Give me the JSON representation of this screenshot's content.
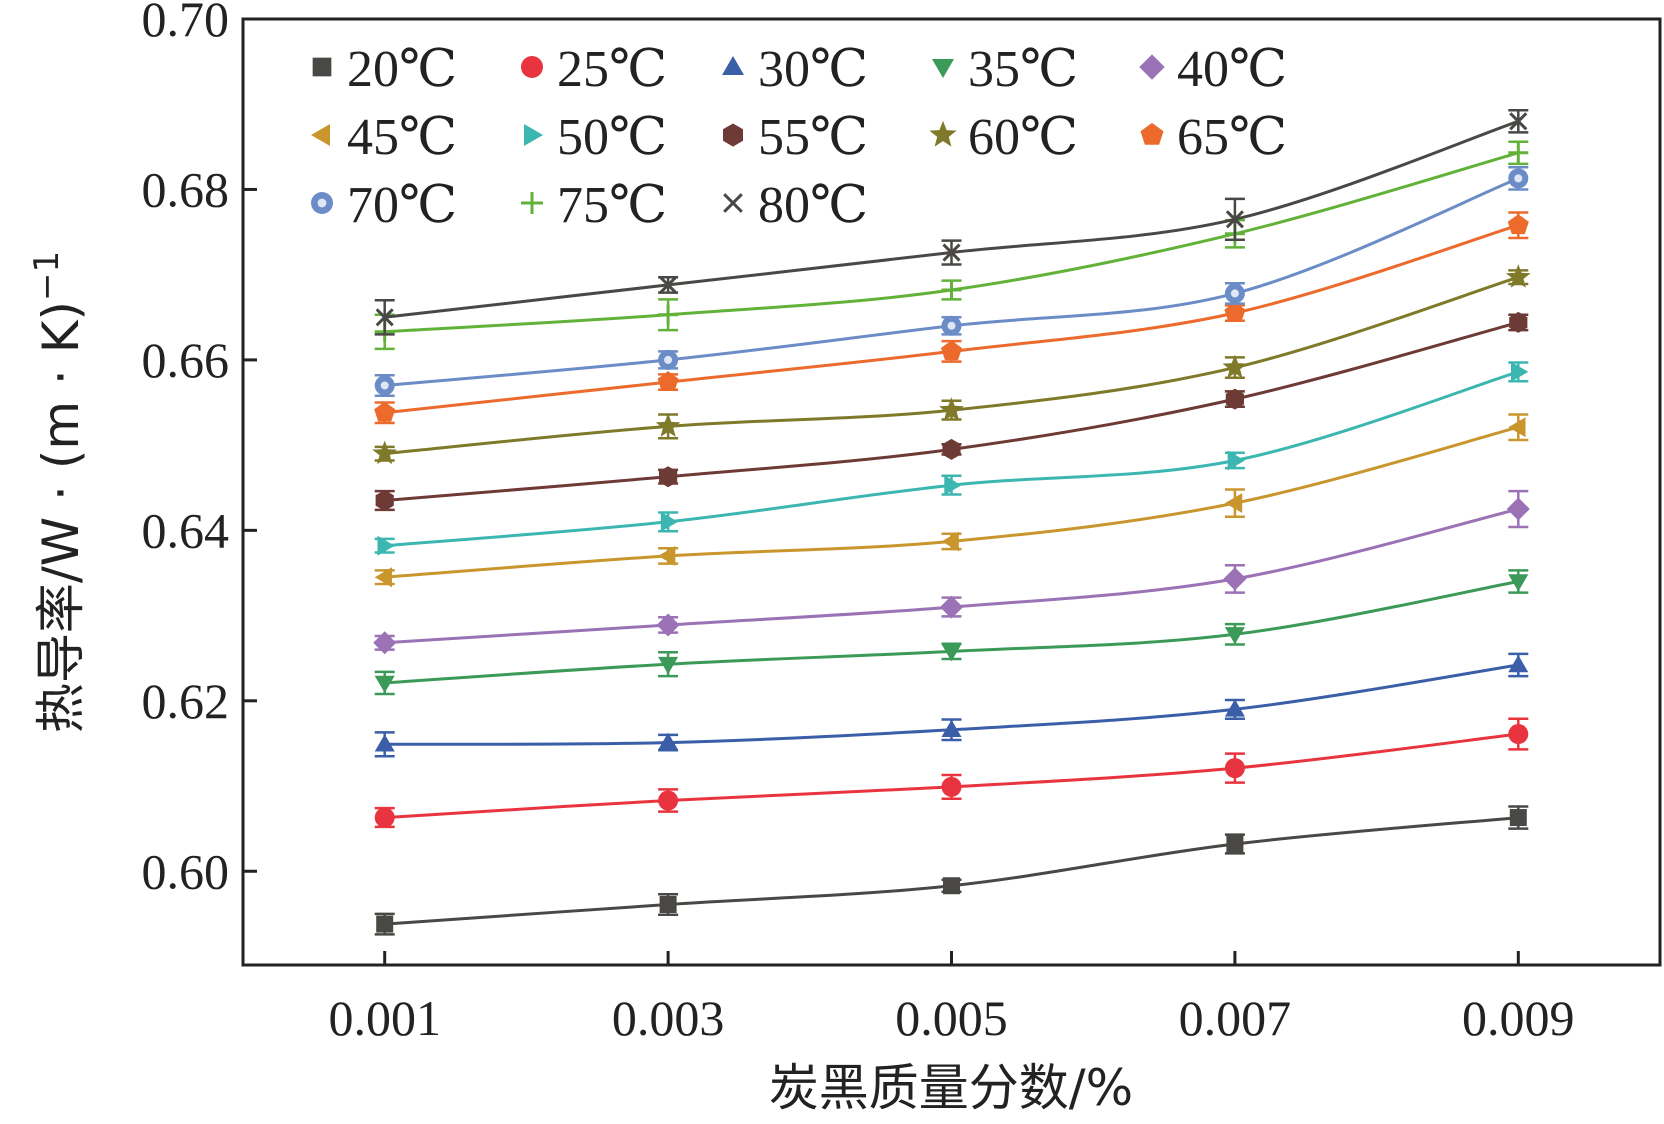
{
  "chart_data": {
    "type": "line",
    "title": "",
    "xlabel": "炭黑质量分数/%",
    "ylabel_main": "热导率/W · (m · K)",
    "ylabel_sup": "−1",
    "x": [
      0.001,
      0.003,
      0.005,
      0.007,
      0.009
    ],
    "x_tick_labels": [
      "0.001",
      "0.003",
      "0.005",
      "0.007",
      "0.009"
    ],
    "xlim": [
      0.0,
      0.01
    ],
    "ylim": [
      0.589,
      0.7
    ],
    "y_ticks": [
      0.6,
      0.62,
      0.64,
      0.66,
      0.68,
      0.7
    ],
    "y_tick_labels": [
      "0.60",
      "0.62",
      "0.64",
      "0.66",
      "0.68",
      "0.70"
    ],
    "legend_position": "top-left",
    "series": [
      {
        "name": "20℃",
        "marker": "square",
        "color": "#4a4845",
        "values": [
          0.5938,
          0.5961,
          0.5983,
          0.6032,
          0.6063
        ],
        "errors": [
          0.0012,
          0.0012,
          0.0007,
          0.0011,
          0.0013
        ]
      },
      {
        "name": "25℃",
        "marker": "circle",
        "color": "#e8343f",
        "values": [
          0.6063,
          0.6083,
          0.6099,
          0.6121,
          0.6161
        ],
        "errors": [
          0.0011,
          0.0013,
          0.0014,
          0.0017,
          0.0018
        ]
      },
      {
        "name": "30℃",
        "marker": "triangle-up",
        "color": "#3a5fa8",
        "values": [
          0.6149,
          0.6151,
          0.6166,
          0.619,
          0.6242
        ],
        "errors": [
          0.0014,
          0.0009,
          0.0012,
          0.0011,
          0.0013
        ]
      },
      {
        "name": "35℃",
        "marker": "triangle-down",
        "color": "#3b9a57",
        "values": [
          0.6221,
          0.6243,
          0.6258,
          0.6278,
          0.634
        ],
        "errors": [
          0.0013,
          0.0014,
          0.0009,
          0.0012,
          0.0013
        ]
      },
      {
        "name": "40℃",
        "marker": "diamond",
        "color": "#9b72b5",
        "values": [
          0.6268,
          0.6289,
          0.631,
          0.6343,
          0.6425
        ],
        "errors": [
          0.0008,
          0.0009,
          0.0011,
          0.0016,
          0.0021
        ]
      },
      {
        "name": "45℃",
        "marker": "triangle-left",
        "color": "#c9962e",
        "values": [
          0.6345,
          0.637,
          0.6387,
          0.6432,
          0.6521
        ],
        "errors": [
          0.0008,
          0.0009,
          0.0009,
          0.0016,
          0.0015
        ]
      },
      {
        "name": "50℃",
        "marker": "triangle-right",
        "color": "#3cb6b0",
        "values": [
          0.6382,
          0.641,
          0.6453,
          0.6482,
          0.6586
        ],
        "errors": [
          0.0008,
          0.0011,
          0.0011,
          0.0009,
          0.0011
        ]
      },
      {
        "name": "55℃",
        "marker": "hexagon",
        "color": "#6e3a35",
        "values": [
          0.6435,
          0.6463,
          0.6495,
          0.6554,
          0.6644
        ],
        "errors": [
          0.0011,
          0.0008,
          0.0006,
          0.0009,
          0.0009
        ]
      },
      {
        "name": "60℃",
        "marker": "star",
        "color": "#7f7a2a",
        "values": [
          0.649,
          0.6522,
          0.6541,
          0.6591,
          0.6697
        ],
        "errors": [
          0.0008,
          0.0014,
          0.0011,
          0.0012,
          0.0008
        ]
      },
      {
        "name": "65℃",
        "marker": "pentagon",
        "color": "#ec6a2b",
        "values": [
          0.6538,
          0.6574,
          0.661,
          0.6655,
          0.6758
        ],
        "errors": [
          0.0012,
          0.0009,
          0.0012,
          0.0009,
          0.0015
        ]
      },
      {
        "name": "70℃",
        "marker": "circle-dot",
        "color": "#6b8cc7",
        "values": [
          0.657,
          0.66,
          0.664,
          0.6678,
          0.6813
        ],
        "errors": [
          0.0012,
          0.001,
          0.001,
          0.0012,
          0.0013
        ]
      },
      {
        "name": "75℃",
        "marker": "plus",
        "color": "#62b23a",
        "values": [
          0.6633,
          0.6653,
          0.6682,
          0.6748,
          0.6843
        ],
        "errors": [
          0.002,
          0.0018,
          0.0011,
          0.0016,
          0.0013
        ]
      },
      {
        "name": "80℃",
        "marker": "cross",
        "color": "#4a4845",
        "values": [
          0.665,
          0.6688,
          0.6726,
          0.6765,
          0.688
        ],
        "errors": [
          0.002,
          0.0009,
          0.0014,
          0.0024,
          0.0013
        ]
      }
    ]
  }
}
